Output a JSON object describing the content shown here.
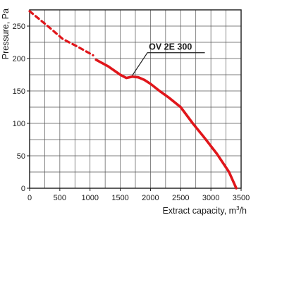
{
  "chart_data": {
    "type": "line",
    "xlabel": "Extract capacity, m",
    "xlabel_sup": "3",
    "xlabel_suffix": "/h",
    "ylabel": "Pressure, Pa",
    "xlim": [
      0,
      3500
    ],
    "ylim": [
      0,
      275
    ],
    "x_ticks": [
      0,
      500,
      1000,
      1500,
      2000,
      2500,
      3000,
      3500
    ],
    "y_ticks": [
      0,
      50,
      100,
      150,
      200,
      250
    ],
    "x_tick_labels": [
      "0",
      "500",
      "1000",
      "1500",
      "2000",
      "2500",
      "3000",
      "3500"
    ],
    "y_tick_labels": [
      "0",
      "50",
      "100",
      "150",
      "200",
      "250"
    ],
    "x_grid_step": 250,
    "y_grid_step": 25,
    "grid": true,
    "series": [
      {
        "name": "OV 2E 300",
        "color": "#e0161b",
        "dashed_segment": {
          "x": [
            0,
            300,
            550,
            800,
            1050
          ],
          "y": [
            273,
            250,
            230,
            218,
            205
          ]
        },
        "solid_segment": {
          "x": [
            1100,
            1300,
            1500,
            1600,
            1700,
            1800,
            1900,
            2000,
            2150,
            2300,
            2500,
            2700,
            2900,
            3100,
            3300,
            3420
          ],
          "y": [
            198,
            188,
            175,
            170,
            172,
            171,
            167,
            161,
            150,
            140,
            125,
            100,
            77,
            53,
            25,
            0
          ]
        }
      }
    ],
    "annotations": [
      {
        "text": "OV 2E 300",
        "leader_from": [
          1700,
          174
        ],
        "leader_elbow": [
          1950,
          209
        ],
        "leader_end": [
          2900,
          209
        ]
      }
    ]
  }
}
